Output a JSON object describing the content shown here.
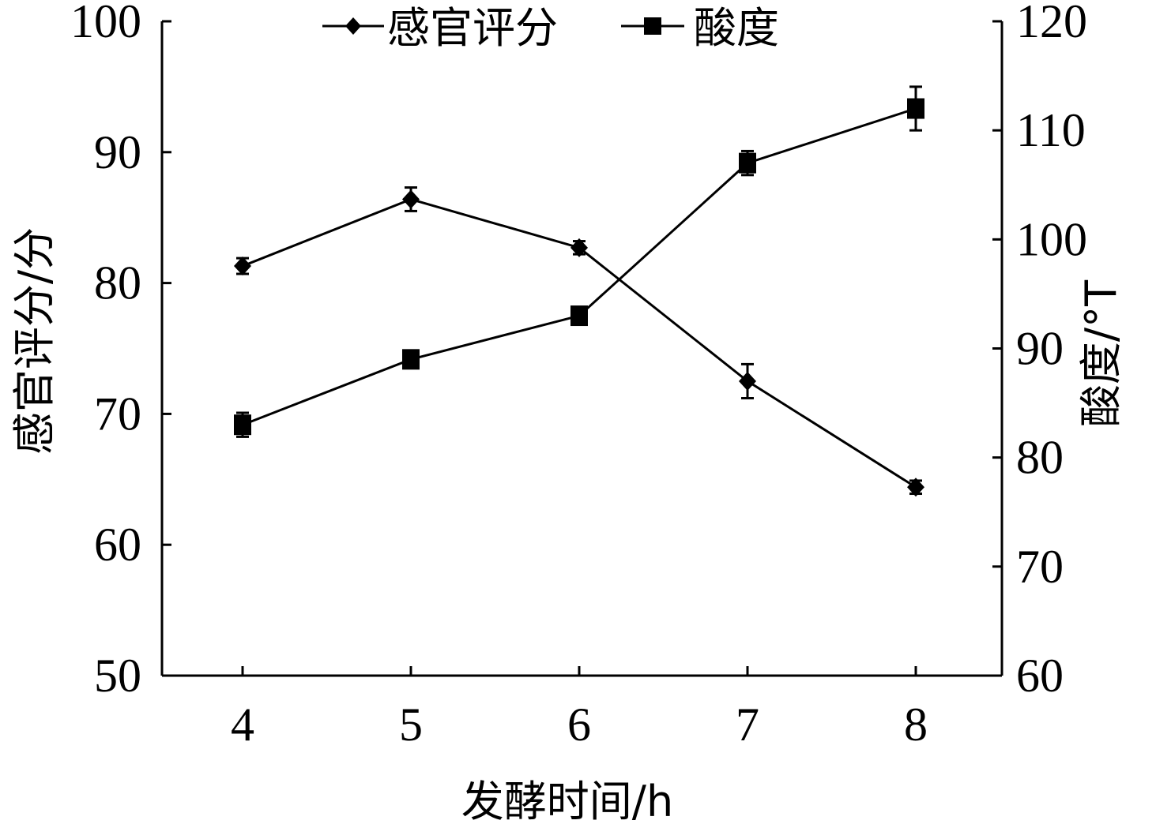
{
  "chart_data": {
    "type": "line",
    "categories": [
      "4",
      "5",
      "6",
      "7",
      "8"
    ],
    "xlabel": "发酵时间/h",
    "ylabel_left": "感官评分/分",
    "ylabel_right": "酸度/°T",
    "ylim_left": [
      50,
      100
    ],
    "yticks_left": [
      "50",
      "60",
      "70",
      "80",
      "90",
      "100"
    ],
    "ylim_right": [
      60,
      120
    ],
    "yticks_right": [
      "60",
      "70",
      "80",
      "90",
      "100",
      "110",
      "120"
    ],
    "legend_position": "top",
    "grid": false,
    "series": [
      {
        "name": "感官评分",
        "axis": "left",
        "marker": "diamond",
        "values": [
          81.3,
          86.4,
          82.7,
          72.5,
          64.4
        ],
        "errors": [
          0.6,
          0.9,
          0.5,
          1.3,
          0.5
        ]
      },
      {
        "name": "酸度",
        "axis": "right",
        "marker": "square",
        "values": [
          83,
          89,
          93,
          107,
          112
        ],
        "errors": [
          1.1,
          0.6,
          0.6,
          1.1,
          2.0
        ]
      }
    ]
  }
}
